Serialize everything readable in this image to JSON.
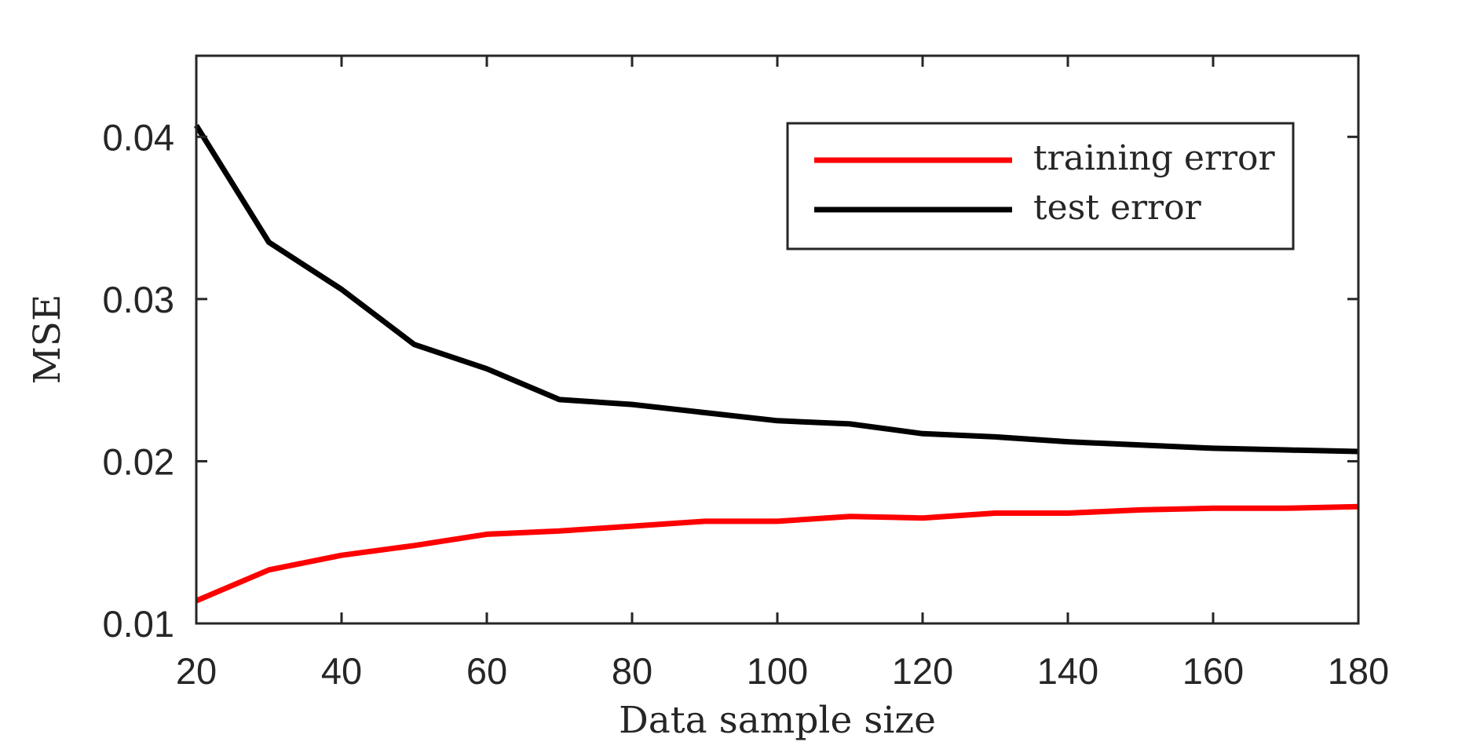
{
  "chart_data": {
    "type": "line",
    "title": "",
    "xlabel": "Data sample size",
    "ylabel": "MSE",
    "xlim": [
      20,
      180
    ],
    "ylim": [
      0.01,
      0.045
    ],
    "x_ticks": [
      20,
      40,
      60,
      80,
      100,
      120,
      140,
      160,
      180
    ],
    "x_tick_labels": [
      "20",
      "40",
      "60",
      "80",
      "100",
      "120",
      "140",
      "160",
      "180"
    ],
    "y_ticks": [
      0.01,
      0.02,
      0.03,
      0.04
    ],
    "y_tick_labels": [
      "0.01",
      "0.02",
      "0.03",
      "0.04"
    ],
    "grid": false,
    "legend_position": "top-right",
    "x": [
      20,
      30,
      40,
      50,
      60,
      70,
      80,
      90,
      100,
      110,
      120,
      130,
      140,
      150,
      160,
      170,
      180
    ],
    "series": [
      {
        "name": "training error",
        "color": "#ff0000",
        "values": [
          0.0114,
          0.0133,
          0.0142,
          0.0148,
          0.0155,
          0.0157,
          0.016,
          0.0163,
          0.0163,
          0.0166,
          0.0165,
          0.0168,
          0.0168,
          0.017,
          0.0171,
          0.0171,
          0.0172
        ]
      },
      {
        "name": "test error",
        "color": "#000000",
        "values": [
          0.0407,
          0.0335,
          0.0306,
          0.0272,
          0.0257,
          0.0238,
          0.0235,
          0.023,
          0.0225,
          0.0223,
          0.0217,
          0.0215,
          0.0212,
          0.021,
          0.0208,
          0.0207,
          0.0206
        ]
      }
    ]
  }
}
